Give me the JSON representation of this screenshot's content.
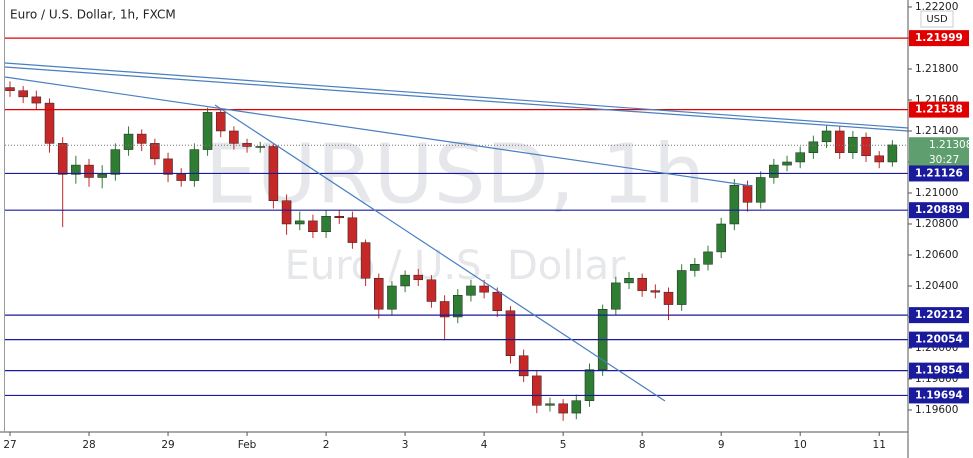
{
  "chart_data": {
    "type": "candlestick",
    "title": "Euro / U.S. Dollar, 1h, FXCM",
    "watermark": "EURUSD, 1h",
    "watermark_subtitle": "Euro / U.S. Dollar",
    "currency": "USD",
    "categories": [
      "27",
      null,
      null,
      null,
      null,
      null,
      "28",
      null,
      null,
      null,
      null,
      null,
      "29",
      null,
      null,
      null,
      null,
      null,
      "Feb",
      null,
      null,
      null,
      null,
      null,
      "2",
      null,
      null,
      null,
      null,
      null,
      "3",
      null,
      null,
      null,
      null,
      null,
      "4",
      null,
      null,
      null,
      null,
      null,
      "5",
      null,
      null,
      null,
      null,
      null,
      "8",
      null,
      null,
      null,
      null,
      null,
      "9",
      null,
      null,
      null,
      null,
      null,
      "10",
      null,
      null,
      null,
      null,
      null,
      "11",
      null
    ],
    "open": [
      1.2168,
      1.2166,
      1.2162,
      1.2158,
      1.2132,
      1.2112,
      1.2118,
      1.211,
      1.2112,
      1.2128,
      1.2138,
      1.2132,
      1.2122,
      1.2112,
      1.2108,
      1.2128,
      1.2152,
      1.214,
      1.2132,
      1.213,
      1.213,
      1.2095,
      1.208,
      1.2082,
      1.2075,
      1.2085,
      1.2084,
      1.2068,
      1.2045,
      1.2025,
      1.204,
      1.2047,
      1.2044,
      1.203,
      1.202,
      1.2034,
      1.204,
      1.2036,
      1.2024,
      1.1995,
      1.1982,
      1.1963,
      1.1964,
      1.1958,
      1.1966,
      1.1986,
      1.2025,
      1.2042,
      1.2045,
      1.2037,
      1.2036,
      1.2028,
      1.205,
      1.2054,
      1.2062,
      1.208,
      1.2105,
      1.2094,
      1.211,
      1.2118,
      1.212,
      1.2126,
      1.2133,
      1.214,
      1.2126,
      1.2136,
      1.2124,
      1.212
    ],
    "high": [
      1.2172,
      1.2169,
      1.2166,
      1.2161,
      1.2136,
      1.2124,
      1.2122,
      1.2118,
      1.2132,
      1.2143,
      1.2141,
      1.2135,
      1.2126,
      1.2116,
      1.2132,
      1.2155,
      1.2154,
      1.2143,
      1.2135,
      1.2133,
      1.2132,
      1.2099,
      1.2088,
      1.2086,
      1.2089,
      1.2089,
      1.2088,
      1.207,
      1.2048,
      1.2043,
      1.205,
      1.2051,
      1.2047,
      1.2034,
      1.2038,
      1.2044,
      1.2044,
      1.2039,
      1.2027,
      1.1999,
      1.1985,
      1.1968,
      1.1967,
      1.197,
      1.199,
      1.2028,
      1.2046,
      1.2049,
      1.2048,
      1.2041,
      1.2039,
      1.2054,
      1.2058,
      1.2066,
      1.2084,
      1.2109,
      1.2108,
      1.2114,
      1.2122,
      1.2124,
      1.213,
      1.2137,
      1.2144,
      1.2143,
      1.214,
      1.2139,
      1.2127,
      1.2134
    ],
    "low": [
      1.2162,
      1.2158,
      1.2154,
      1.2126,
      1.2078,
      1.2106,
      1.2104,
      1.2103,
      1.2108,
      1.2124,
      1.2127,
      1.2118,
      1.2107,
      1.2104,
      1.2104,
      1.2124,
      1.2136,
      1.2128,
      1.2126,
      1.2126,
      1.209,
      1.2073,
      1.2076,
      1.2071,
      1.2071,
      1.208,
      1.2064,
      1.204,
      1.2019,
      1.2021,
      1.2036,
      1.204,
      1.2026,
      1.2005,
      1.2016,
      1.203,
      1.2032,
      1.202,
      1.199,
      1.1978,
      1.1958,
      1.1959,
      1.1953,
      1.1954,
      1.1962,
      1.1982,
      1.2021,
      1.2038,
      1.2033,
      1.2032,
      1.2018,
      1.2024,
      1.2046,
      1.205,
      1.2058,
      1.2076,
      1.2088,
      1.209,
      1.2106,
      1.2114,
      1.2116,
      1.2122,
      1.2129,
      1.2122,
      1.2122,
      1.212,
      1.2116,
      1.2117
    ],
    "close": [
      1.2166,
      1.2162,
      1.2158,
      1.2132,
      1.2112,
      1.2118,
      1.211,
      1.2112,
      1.2128,
      1.2138,
      1.2132,
      1.2122,
      1.2112,
      1.2108,
      1.2128,
      1.2152,
      1.214,
      1.2132,
      1.213,
      1.213,
      1.2095,
      1.208,
      1.2082,
      1.2075,
      1.2085,
      1.2084,
      1.2068,
      1.2045,
      1.2025,
      1.204,
      1.2047,
      1.2044,
      1.203,
      1.202,
      1.2034,
      1.204,
      1.2036,
      1.2024,
      1.1995,
      1.1982,
      1.1963,
      1.1964,
      1.1958,
      1.1966,
      1.1986,
      1.2025,
      1.2042,
      1.2045,
      1.2037,
      1.2036,
      1.2028,
      1.205,
      1.2054,
      1.2062,
      1.208,
      1.2105,
      1.2094,
      1.211,
      1.2118,
      1.212,
      1.2126,
      1.2133,
      1.214,
      1.2126,
      1.2136,
      1.2124,
      1.212,
      1.2131
    ],
    "up_color": "#2e7d32",
    "down_color": "#c62828",
    "ylim": [
      1.19458,
      1.22245
    ],
    "yticks": [
      {
        "value": 1.196,
        "label": "1.19600"
      },
      {
        "value": 1.198,
        "label": "1.19800"
      },
      {
        "value": 1.2,
        "label": "1.20000"
      },
      {
        "value": 1.202,
        "label": "1.20200"
      },
      {
        "value": 1.204,
        "label": "1.20400"
      },
      {
        "value": 1.206,
        "label": "1.20600"
      },
      {
        "value": 1.208,
        "label": "1.20800"
      },
      {
        "value": 1.21,
        "label": "1.21000"
      },
      {
        "value": 1.212,
        "label": "1.21200"
      },
      {
        "value": 1.214,
        "label": "1.21400"
      },
      {
        "value": 1.216,
        "label": "1.21600"
      },
      {
        "value": 1.218,
        "label": "1.21800"
      },
      {
        "value": 1.22,
        "label": "1.22000"
      },
      {
        "value": 1.222,
        "label": "1.22200"
      }
    ],
    "grid": false,
    "levels": [
      {
        "value": 1.21999,
        "color": "#e00000"
      },
      {
        "value": 1.21538,
        "color": "#e00000"
      },
      {
        "value": 1.21126,
        "color": "#1a1a9c"
      },
      {
        "value": 1.20889,
        "color": "#1a1a9c"
      },
      {
        "value": 1.20212,
        "color": "#1a1a9c"
      },
      {
        "value": 1.20054,
        "color": "#1a1a9c"
      },
      {
        "value": 1.19854,
        "color": "#1a1a9c"
      },
      {
        "value": 1.19694,
        "color": "#1a1a9c"
      }
    ],
    "current_price": {
      "value": 1.21308,
      "countdown": "30:27",
      "color": "#5f9e6e"
    }
  }
}
